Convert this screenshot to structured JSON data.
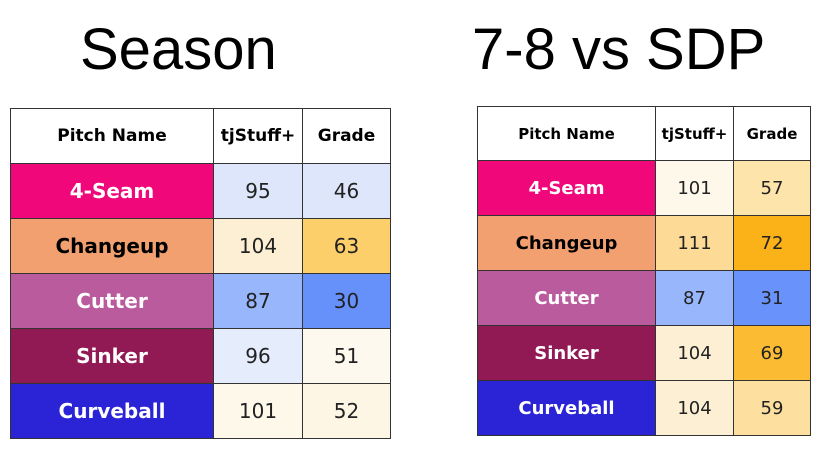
{
  "titles": {
    "left": "Season",
    "right": "7-8 vs SDP"
  },
  "headers": {
    "pitch_name": "Pitch Name",
    "tjstuff": "tjStuff+",
    "grade": "Grade"
  },
  "tables": {
    "season": {
      "rows": [
        {
          "pitch": "4-Seam",
          "pitch_bg": "#F0087A",
          "pitch_fg": "#ffffff",
          "stuff": "95",
          "stuff_bg": "#DDE6FB",
          "grade": "46",
          "grade_bg": "#DDE6FB"
        },
        {
          "pitch": "Changeup",
          "pitch_bg": "#F2A070",
          "pitch_fg": "#000000",
          "stuff": "104",
          "stuff_bg": "#FDEFD4",
          "grade": "63",
          "grade_bg": "#FDCF6A"
        },
        {
          "pitch": "Cutter",
          "pitch_bg": "#BA5B9E",
          "pitch_fg": "#ffffff",
          "stuff": "87",
          "stuff_bg": "#97B6FB",
          "grade": "30",
          "grade_bg": "#6690FA"
        },
        {
          "pitch": "Sinker",
          "pitch_bg": "#911A55",
          "pitch_fg": "#ffffff",
          "stuff": "96",
          "stuff_bg": "#E5ECFB",
          "grade": "51",
          "grade_bg": "#FEF9EE"
        },
        {
          "pitch": "Curveball",
          "pitch_bg": "#2A24D6",
          "pitch_fg": "#ffffff",
          "stuff": "101",
          "stuff_bg": "#FEF8EB",
          "grade": "52",
          "grade_bg": "#FEF6E5"
        }
      ]
    },
    "sdp": {
      "rows": [
        {
          "pitch": "4-Seam",
          "pitch_bg": "#F0087A",
          "pitch_fg": "#ffffff",
          "stuff": "101",
          "stuff_bg": "#FEF8EB",
          "grade": "57",
          "grade_bg": "#FDE4AB"
        },
        {
          "pitch": "Changeup",
          "pitch_bg": "#F2A070",
          "pitch_fg": "#000000",
          "stuff": "111",
          "stuff_bg": "#FDDB97",
          "grade": "72",
          "grade_bg": "#FBB118"
        },
        {
          "pitch": "Cutter",
          "pitch_bg": "#BA5B9E",
          "pitch_fg": "#ffffff",
          "stuff": "87",
          "stuff_bg": "#97B6FB",
          "grade": "31",
          "grade_bg": "#6993FA"
        },
        {
          "pitch": "Sinker",
          "pitch_bg": "#911A55",
          "pitch_fg": "#ffffff",
          "stuff": "104",
          "stuff_bg": "#FDEFD4",
          "grade": "69",
          "grade_bg": "#FBBB33"
        },
        {
          "pitch": "Curveball",
          "pitch_bg": "#2A24D6",
          "pitch_fg": "#ffffff",
          "stuff": "104",
          "stuff_bg": "#FDEFD4",
          "grade": "59",
          "grade_bg": "#FDE0A0"
        }
      ]
    }
  }
}
